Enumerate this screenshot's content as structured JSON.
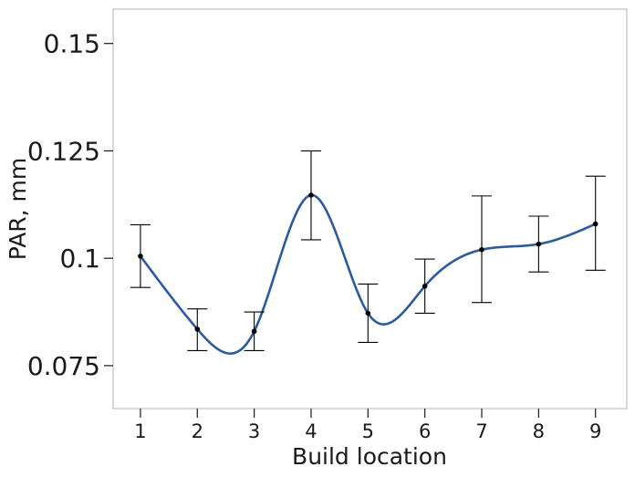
{
  "chart_data": {
    "type": "line",
    "xlabel": "Build location",
    "ylabel": "PAR, mm",
    "x": [
      1,
      2,
      3,
      4,
      5,
      6,
      7,
      8,
      9
    ],
    "xlim": [
      0.52,
      9.55
    ],
    "ylim": [
      0.065,
      0.158
    ],
    "yticks": [
      0.075,
      0.1,
      0.125,
      0.15
    ],
    "ytick_labels": [
      "0.075",
      "0.1",
      "0.125",
      "0.15"
    ],
    "xtick_labels": [
      "1",
      "2",
      "3",
      "4",
      "5",
      "6",
      "7",
      "8",
      "9"
    ],
    "series": [
      {
        "values": [
          0.1005,
          0.0835,
          0.083,
          0.1147,
          0.0872,
          0.0935,
          0.102,
          0.1033,
          0.108
        ],
        "error_low": [
          0.0932,
          0.0785,
          0.0785,
          0.1043,
          0.0804,
          0.0872,
          0.0897,
          0.0968,
          0.0972
        ],
        "error_high": [
          0.1078,
          0.0882,
          0.0875,
          0.125,
          0.094,
          0.0998,
          0.1145,
          0.1098,
          0.1191
        ],
        "line_style": "smooth spline"
      }
    ],
    "grid": false,
    "legend": "none",
    "colors": {
      "line": "#2b5aa0",
      "marker": "#000000",
      "errorbar": "#000000",
      "frame": "#b3b3b3",
      "plot_bg": "#ffffff"
    }
  }
}
